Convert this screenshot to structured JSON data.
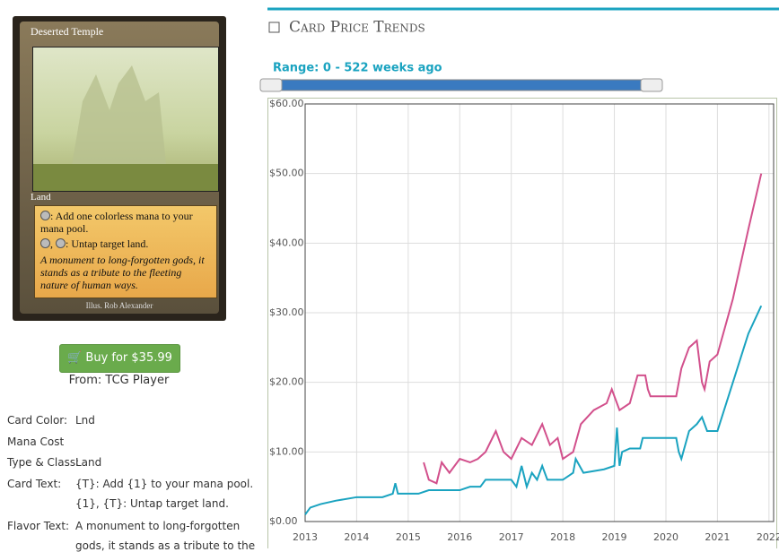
{
  "card": {
    "name": "Deserted Temple",
    "type": "Land",
    "rules": [
      ": Add one colorless mana to your mana pool.",
      ": Untap target land."
    ],
    "flavor": "A monument to long-forgotten gods, it stands as a tribute to the fleeting nature of human ways.",
    "illustrator": "Illus. Rob Alexander"
  },
  "buy": {
    "button": "Buy for $35.99",
    "source": "From: TCG Player"
  },
  "details": [
    {
      "label": "Card Color:",
      "lines": [
        "Lnd"
      ]
    },
    {
      "label": "Mana Cost"
    },
    {
      "label": "Type & Class:",
      "lines": [
        "Land"
      ]
    },
    {
      "label": "Card Text:",
      "lines": [
        "{T}: Add {1} to your mana pool.",
        "{1}, {T}: Untap target land."
      ]
    },
    {
      "label": "Flavor Text:",
      "lines": [
        "A monument to long-forgotten",
        "gods, it stands as a tribute to the"
      ]
    }
  ],
  "section_title": "Card Price Trends",
  "range_label": "Range: 0 - 522 weeks ago",
  "chart_data": {
    "type": "line",
    "xlim": [
      2013,
      2022.09
    ],
    "xticks": [
      2013,
      2014,
      2015,
      2016,
      2017,
      2018,
      2019,
      2020,
      2021,
      2022
    ],
    "ylim": [
      0,
      60
    ],
    "yticks": [
      {
        "value": 0,
        "label": "$0.00"
      },
      {
        "value": 10,
        "label": "$10.00"
      },
      {
        "value": 20,
        "label": "$20.00"
      },
      {
        "value": 30,
        "label": "$30.00"
      },
      {
        "value": 40,
        "label": "$40.00"
      },
      {
        "value": 50,
        "label": "$50.00"
      },
      {
        "value": 60,
        "label": "$60.00"
      }
    ],
    "grid": true,
    "series": [
      {
        "color": "#d2508c",
        "x": [
          2015.3,
          2015.4,
          2015.55,
          2015.65,
          2015.8,
          2016.0,
          2016.2,
          2016.35,
          2016.5,
          2016.7,
          2016.85,
          2017.0,
          2017.2,
          2017.4,
          2017.6,
          2017.75,
          2017.9,
          2018.0,
          2018.2,
          2018.35,
          2018.6,
          2018.85,
          2018.95,
          2019.1,
          2019.3,
          2019.45,
          2019.6,
          2019.65,
          2019.7,
          2020.2,
          2020.3,
          2020.45,
          2020.6,
          2020.7,
          2020.75,
          2020.85,
          2021.0,
          2021.3,
          2021.6,
          2021.85
        ],
        "values": [
          8.5,
          6,
          5.5,
          8.5,
          7,
          9,
          8.5,
          9,
          10,
          13,
          10,
          9,
          12,
          11,
          14,
          11,
          12,
          9,
          10,
          14,
          16,
          17,
          19,
          16,
          17,
          21,
          21,
          19,
          18,
          18,
          22,
          25,
          26,
          20,
          19,
          23,
          24,
          32,
          42,
          50
        ]
      },
      {
        "color": "#1aa3c0",
        "x": [
          2013.0,
          2013.1,
          2013.3,
          2013.6,
          2014.0,
          2014.5,
          2014.7,
          2014.75,
          2014.8,
          2015.2,
          2015.4,
          2016.0,
          2016.2,
          2016.4,
          2016.5,
          2017.0,
          2017.1,
          2017.2,
          2017.3,
          2017.4,
          2017.5,
          2017.6,
          2017.7,
          2018.0,
          2018.2,
          2018.25,
          2018.4,
          2018.8,
          2019.0,
          2019.05,
          2019.1,
          2019.15,
          2019.3,
          2019.5,
          2019.55,
          2020.2,
          2020.25,
          2020.3,
          2020.45,
          2020.6,
          2020.7,
          2020.8,
          2021.0,
          2021.3,
          2021.6,
          2021.85
        ],
        "values": [
          1,
          2,
          2.5,
          3,
          3.5,
          3.5,
          4,
          5.5,
          4,
          4,
          4.5,
          4.5,
          5,
          5,
          6,
          6,
          5,
          8,
          5,
          7,
          6,
          8,
          6,
          6,
          7,
          9,
          7,
          7.5,
          8,
          13.5,
          8,
          10,
          10.5,
          10.5,
          12,
          12,
          10,
          9,
          13,
          14,
          15,
          13,
          13,
          20,
          27,
          31
        ]
      }
    ]
  }
}
